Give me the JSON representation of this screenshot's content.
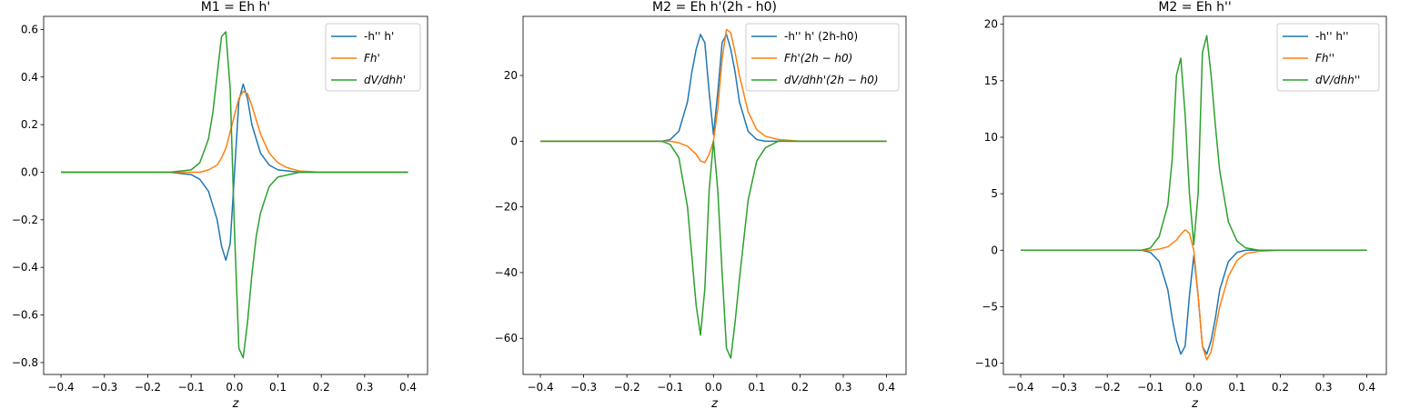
{
  "figure": {
    "colors": {
      "blue": "#1f77b4",
      "orange": "#ff7f0e",
      "green": "#2ca02c"
    }
  },
  "chart_data": [
    {
      "type": "line",
      "title": "M1 = Eh h'",
      "xlabel": "z",
      "ylabel": "",
      "xlim": [
        -0.44,
        0.445
      ],
      "ylim": [
        -0.85,
        0.655
      ],
      "xticks": [
        -0.4,
        -0.3,
        -0.2,
        -0.1,
        0.0,
        0.1,
        0.2,
        0.3,
        0.4
      ],
      "xtick_labels": [
        "−0.4",
        "−0.3",
        "−0.2",
        "−0.1",
        "0.0",
        "0.1",
        "0.2",
        "0.3",
        "0.4"
      ],
      "yticks": [
        0.6,
        0.4,
        0.2,
        0.0,
        -0.2,
        -0.4,
        -0.6,
        -0.8
      ],
      "ytick_labels": [
        "0.6",
        "0.4",
        "0.2",
        "0.0",
        "−0.2",
        "−0.4",
        "−0.6",
        "−0.8"
      ],
      "grid": false,
      "legend_position": "top-right",
      "series": [
        {
          "name": "-h'' h'",
          "color": "#1f77b4",
          "x": [
            -0.4,
            -0.15,
            -0.1,
            -0.08,
            -0.06,
            -0.04,
            -0.03,
            -0.02,
            -0.01,
            0.0,
            0.01,
            0.02,
            0.03,
            0.04,
            0.06,
            0.08,
            0.1,
            0.15,
            0.4
          ],
          "y": [
            0.0,
            0.0,
            -0.01,
            -0.03,
            -0.08,
            -0.2,
            -0.31,
            -0.37,
            -0.3,
            0.0,
            0.3,
            0.37,
            0.31,
            0.2,
            0.08,
            0.03,
            0.01,
            0.0,
            0.0
          ]
        },
        {
          "name": "Fh'",
          "color": "#ff7f0e",
          "x": [
            -0.4,
            -0.08,
            -0.06,
            -0.04,
            -0.03,
            -0.02,
            -0.01,
            0.0,
            0.01,
            0.02,
            0.03,
            0.04,
            0.05,
            0.06,
            0.08,
            0.1,
            0.12,
            0.15,
            0.2,
            0.4
          ],
          "y": [
            0.0,
            0.0,
            0.01,
            0.03,
            0.06,
            0.1,
            0.17,
            0.24,
            0.31,
            0.34,
            0.33,
            0.28,
            0.22,
            0.16,
            0.08,
            0.04,
            0.02,
            0.005,
            0.0,
            0.0
          ]
        },
        {
          "name": "dV/dhh'",
          "color": "#2ca02c",
          "x": [
            -0.4,
            -0.15,
            -0.1,
            -0.08,
            -0.06,
            -0.05,
            -0.04,
            -0.03,
            -0.02,
            -0.01,
            0.0,
            0.01,
            0.02,
            0.03,
            0.04,
            0.05,
            0.06,
            0.08,
            0.1,
            0.15,
            0.4
          ],
          "y": [
            0.0,
            0.0,
            0.01,
            0.04,
            0.14,
            0.25,
            0.41,
            0.57,
            0.59,
            0.35,
            -0.25,
            -0.74,
            -0.78,
            -0.63,
            -0.43,
            -0.27,
            -0.17,
            -0.06,
            -0.02,
            0.0,
            0.0
          ]
        }
      ]
    },
    {
      "type": "line",
      "title": "M2 = Eh h'(2h - h0)",
      "xlabel": "z",
      "ylabel": "",
      "xlim": [
        -0.44,
        0.445
      ],
      "ylim": [
        -71,
        38
      ],
      "xticks": [
        -0.4,
        -0.3,
        -0.2,
        -0.1,
        0.0,
        0.1,
        0.2,
        0.3,
        0.4
      ],
      "xtick_labels": [
        "−0.4",
        "−0.3",
        "−0.2",
        "−0.1",
        "0.0",
        "0.1",
        "0.2",
        "0.3",
        "0.4"
      ],
      "yticks": [
        20,
        0,
        -20,
        -40,
        -60
      ],
      "ytick_labels": [
        "20",
        "0",
        "−20",
        "−40",
        "−60"
      ],
      "grid": false,
      "legend_position": "top-right",
      "series": [
        {
          "name": "-h'' h' (2h-h0)",
          "color": "#1f77b4",
          "x": [
            -0.4,
            -0.12,
            -0.1,
            -0.08,
            -0.06,
            -0.05,
            -0.04,
            -0.03,
            -0.02,
            -0.01,
            0.0,
            0.01,
            0.02,
            0.03,
            0.04,
            0.05,
            0.06,
            0.08,
            0.1,
            0.12,
            0.4
          ],
          "y": [
            0.0,
            0.0,
            0.5,
            3,
            12,
            21,
            28,
            32.5,
            30,
            15,
            2,
            15,
            30,
            32.5,
            28,
            21,
            12,
            3,
            0.5,
            0.0,
            0.0
          ]
        },
        {
          "name": "Fh'(2h − h0)",
          "color": "#ff7f0e",
          "x": [
            -0.4,
            -0.1,
            -0.08,
            -0.06,
            -0.04,
            -0.03,
            -0.02,
            -0.01,
            0.0,
            0.01,
            0.02,
            0.03,
            0.04,
            0.05,
            0.06,
            0.08,
            0.1,
            0.12,
            0.15,
            0.2,
            0.4
          ],
          "y": [
            0.0,
            0.0,
            -0.5,
            -1.5,
            -4,
            -6,
            -6.5,
            -4,
            0,
            10,
            25,
            34,
            33,
            27,
            20,
            9,
            3.5,
            1.5,
            0.5,
            0.0,
            0.0
          ]
        },
        {
          "name": "dV/dhh'(2h − h0)",
          "color": "#2ca02c",
          "x": [
            -0.4,
            -0.12,
            -0.1,
            -0.08,
            -0.06,
            -0.05,
            -0.04,
            -0.03,
            -0.02,
            -0.01,
            0.0,
            0.01,
            0.02,
            0.03,
            0.04,
            0.05,
            0.06,
            0.08,
            0.1,
            0.12,
            0.15,
            0.4
          ],
          "y": [
            0.0,
            0.0,
            -1,
            -5,
            -20,
            -35,
            -50,
            -59,
            -45,
            -15,
            0,
            -15,
            -40,
            -63,
            -66,
            -55,
            -42,
            -18,
            -6,
            -2,
            0.0,
            0.0
          ]
        }
      ]
    },
    {
      "type": "line",
      "title": "M2 = Eh h''",
      "xlabel": "z",
      "ylabel": "",
      "xlim": [
        -0.44,
        0.445
      ],
      "ylim": [
        -11.0,
        20.7
      ],
      "xticks": [
        -0.4,
        -0.3,
        -0.2,
        -0.1,
        0.0,
        0.1,
        0.2,
        0.3,
        0.4
      ],
      "xtick_labels": [
        "−0.4",
        "−0.3",
        "−0.2",
        "−0.1",
        "0.0",
        "0.1",
        "0.2",
        "0.3",
        "0.4"
      ],
      "yticks": [
        20,
        15,
        10,
        5,
        0,
        -5,
        -10
      ],
      "ytick_labels": [
        "20",
        "15",
        "10",
        "5",
        "0",
        "−5",
        "−10"
      ],
      "grid": false,
      "legend_position": "top-right",
      "series": [
        {
          "name": "-h'' h''",
          "color": "#1f77b4",
          "x": [
            -0.4,
            -0.12,
            -0.1,
            -0.08,
            -0.06,
            -0.05,
            -0.04,
            -0.03,
            -0.02,
            -0.01,
            0.0,
            0.01,
            0.02,
            0.03,
            0.04,
            0.05,
            0.06,
            0.08,
            0.1,
            0.12,
            0.4
          ],
          "y": [
            0.0,
            0.0,
            -0.2,
            -1,
            -3.5,
            -6,
            -8,
            -9.2,
            -8.5,
            -4,
            -0.5,
            -4,
            -8.5,
            -9.2,
            -8,
            -6,
            -3.5,
            -1,
            -0.2,
            0.0,
            0.0
          ]
        },
        {
          "name": "Fh''",
          "color": "#ff7f0e",
          "x": [
            -0.4,
            -0.1,
            -0.08,
            -0.06,
            -0.04,
            -0.03,
            -0.02,
            -0.01,
            0.0,
            0.01,
            0.02,
            0.03,
            0.04,
            0.05,
            0.06,
            0.08,
            0.1,
            0.12,
            0.15,
            0.2,
            0.4
          ],
          "y": [
            0.0,
            0.0,
            0.1,
            0.3,
            0.9,
            1.4,
            1.8,
            1.5,
            0.0,
            -4,
            -8.5,
            -9.7,
            -9.0,
            -7,
            -5,
            -2.3,
            -0.9,
            -0.3,
            -0.1,
            0.0,
            0.0
          ]
        },
        {
          "name": "dV/dhh''",
          "color": "#2ca02c",
          "x": [
            -0.4,
            -0.12,
            -0.1,
            -0.08,
            -0.06,
            -0.05,
            -0.04,
            -0.03,
            -0.02,
            -0.01,
            0.0,
            0.01,
            0.02,
            0.03,
            0.04,
            0.05,
            0.06,
            0.08,
            0.1,
            0.12,
            0.15,
            0.4
          ],
          "y": [
            0.0,
            0.0,
            0.2,
            1.2,
            4,
            8,
            15.5,
            17,
            12,
            5,
            0.5,
            5,
            17.5,
            19,
            15.5,
            11,
            7,
            2.5,
            0.8,
            0.2,
            0.0,
            0.0
          ]
        }
      ]
    }
  ]
}
